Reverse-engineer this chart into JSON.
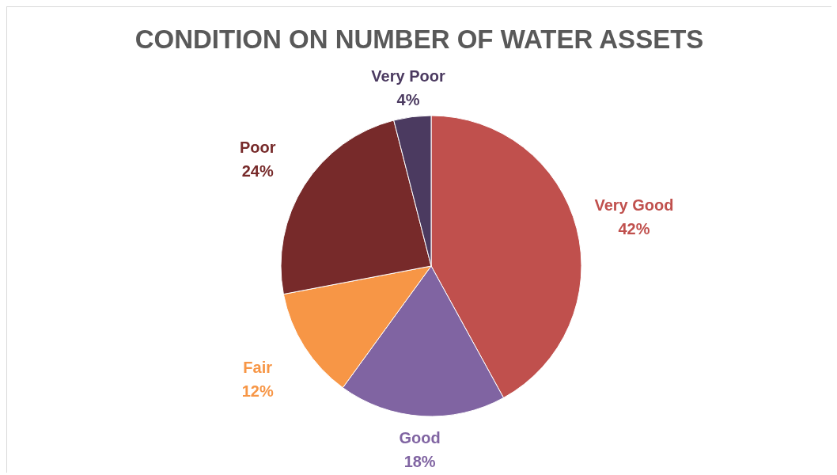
{
  "chart_data": {
    "type": "pie",
    "title": "CONDITION ON NUMBER OF WATER ASSETS",
    "categories": [
      "Very Good",
      "Good",
      "Fair",
      "Poor",
      "Very Poor"
    ],
    "values": [
      42,
      18,
      12,
      24,
      4
    ],
    "value_labels": [
      "42%",
      "18%",
      "12%",
      "24%",
      "4%"
    ],
    "colors": [
      "#c0504d",
      "#8064a2",
      "#f79646",
      "#772a2a",
      "#4b3a60"
    ],
    "legend": false
  }
}
